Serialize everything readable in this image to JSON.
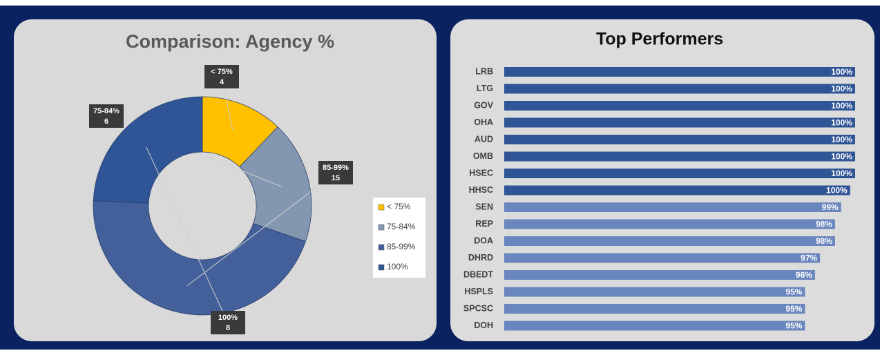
{
  "chart_data": [
    {
      "type": "donut",
      "title": "Comparison:  Agency %",
      "categories": [
        "< 75%",
        "75-84%",
        "85-99%",
        "100%"
      ],
      "values": [
        4,
        6,
        15,
        8
      ],
      "colors": [
        "#ffc000",
        "#8497b0",
        "#44609a",
        "#2f5597"
      ],
      "legend": "right"
    },
    {
      "type": "hbar",
      "title": "Top Performers",
      "categories": [
        "LRB",
        "LTG",
        "GOV",
        "OHA",
        "AUD",
        "OMB",
        "HSEC",
        "HHSC",
        "SEN",
        "REP",
        "DOA",
        "DHRD",
        "DBEDT",
        "HSPLS",
        "SPCSC",
        "DOH"
      ],
      "values": [
        100,
        100,
        100,
        100,
        100,
        100,
        100,
        99.5,
        98.6,
        98,
        98,
        96.5,
        96,
        95,
        95,
        95
      ],
      "value_labels": [
        "100%",
        "100%",
        "100%",
        "100%",
        "100%",
        "100%",
        "100%",
        "100%",
        "99%",
        "98%",
        "98%",
        "97%",
        "96%",
        "95%",
        "95%",
        "95%"
      ],
      "colors": [
        "#2f5597",
        "#2f5597",
        "#2f5597",
        "#2f5597",
        "#2f5597",
        "#2f5597",
        "#2f5597",
        "#2f5597",
        "#6a86be",
        "#6a86be",
        "#6a86be",
        "#6a86be",
        "#6a86be",
        "#6a86be",
        "#6a86be",
        "#6a86be"
      ],
      "xlim": [
        65,
        100
      ]
    }
  ]
}
